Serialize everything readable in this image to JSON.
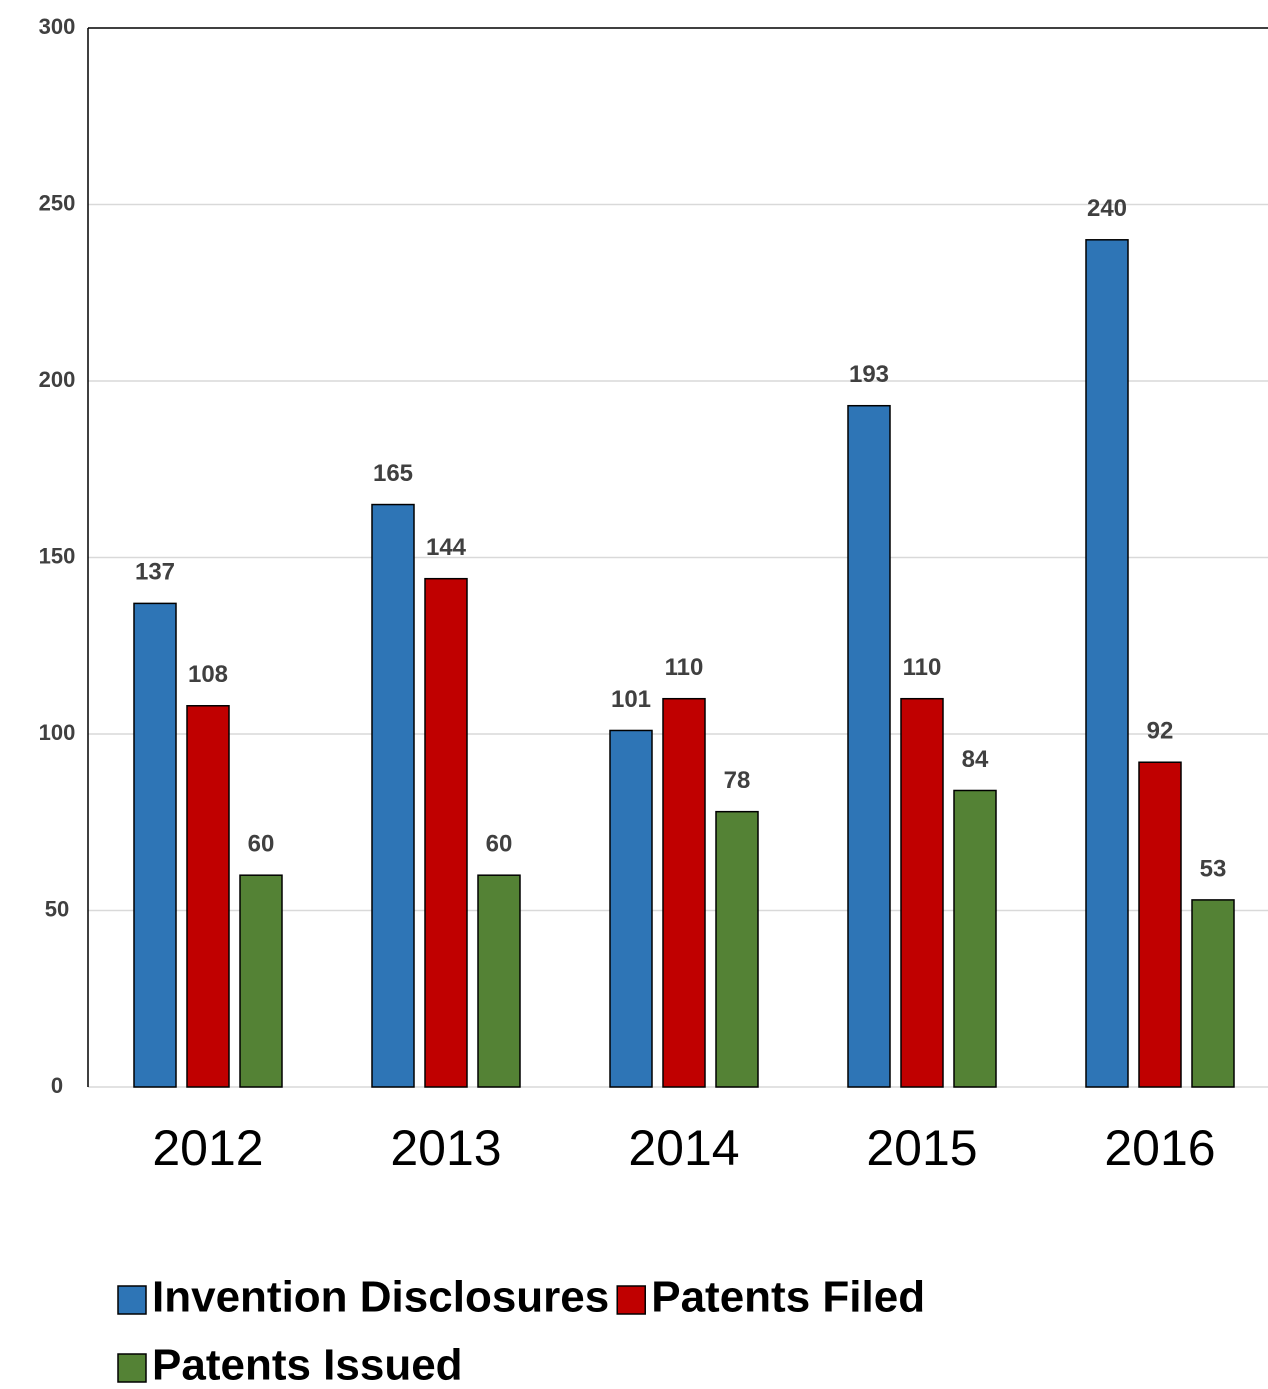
{
  "chart_data": {
    "type": "bar",
    "categories": [
      "2012",
      "2013",
      "2014",
      "2015",
      "2016"
    ],
    "series": [
      {
        "name": "Invention Disclosures",
        "color": "#2e75b6",
        "values": [
          137,
          165,
          101,
          193,
          240
        ]
      },
      {
        "name": "Patents Filed",
        "color": "#c00000",
        "values": [
          108,
          144,
          110,
          110,
          92
        ]
      },
      {
        "name": "Patents Issued",
        "color": "#548235",
        "values": [
          60,
          60,
          78,
          84,
          53
        ]
      }
    ],
    "ylim": [
      0,
      300
    ],
    "yticks": [
      0,
      50,
      100,
      150,
      200,
      250,
      300
    ],
    "grid": true,
    "legend": "bottom"
  }
}
